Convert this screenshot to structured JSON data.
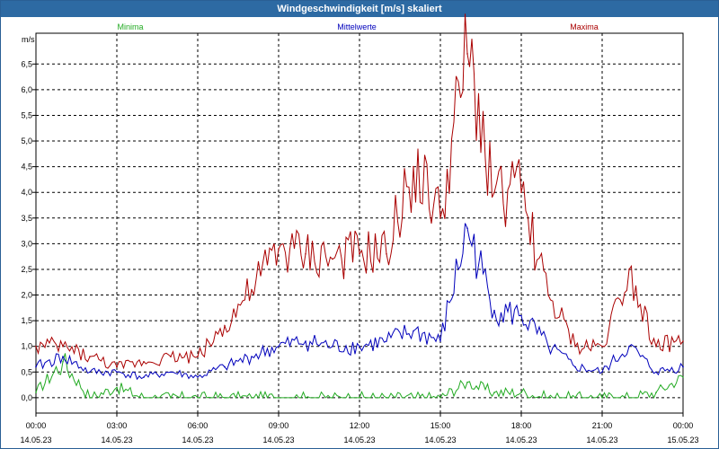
{
  "window": {
    "title": "Windgeschwindigkeit [m/s] skaliert"
  },
  "chart_data": {
    "type": "line",
    "title": "Windgeschwindigkeit [m/s] skaliert",
    "ylabel": "m/s",
    "ylim": [
      -0.3,
      7.1
    ],
    "yticks": [
      0.0,
      0.5,
      1.0,
      1.5,
      2.0,
      2.5,
      3.0,
      3.5,
      4.0,
      4.5,
      5.0,
      5.5,
      6.0,
      6.5
    ],
    "ytick_labels": [
      "0,0",
      "0,5",
      "1,0",
      "1,5",
      "2,0",
      "2,5",
      "3,0",
      "3,5",
      "4,0",
      "4,5",
      "5,0",
      "5,5",
      "6,0",
      "6,5"
    ],
    "xticks": [
      {
        "time": "00:00",
        "date": "14.05.23"
      },
      {
        "time": "03:00",
        "date": "14.05.23"
      },
      {
        "time": "06:00",
        "date": "14.05.23"
      },
      {
        "time": "09:00",
        "date": "14.05.23"
      },
      {
        "time": "12:00",
        "date": "14.05.23"
      },
      {
        "time": "15:00",
        "date": "14.05.23"
      },
      {
        "time": "18:00",
        "date": "14.05.23"
      },
      {
        "time": "21:00",
        "date": "14.05.23"
      },
      {
        "time": "00:00",
        "date": "15.05.23"
      }
    ],
    "x_hours": [
      0,
      1,
      2,
      3,
      4,
      5,
      6,
      7,
      8,
      9,
      10,
      11,
      12,
      13,
      14,
      15,
      16,
      17,
      18,
      19,
      20,
      21,
      22,
      23,
      24
    ],
    "grid": true,
    "legend_position": "top",
    "series": [
      {
        "name": "Minima",
        "color": "#22aa22",
        "values": [
          0.1,
          0.7,
          0.0,
          0.2,
          0.0,
          0.0,
          0.0,
          0.0,
          0.0,
          0.0,
          0.0,
          0.0,
          0.0,
          0.0,
          0.0,
          0.0,
          0.3,
          0.1,
          0.1,
          0.0,
          0.0,
          0.0,
          0.0,
          0.1,
          0.4
        ]
      },
      {
        "name": "Mittelwerte",
        "color": "#0000bb",
        "values": [
          0.6,
          0.8,
          0.5,
          0.5,
          0.4,
          0.5,
          0.4,
          0.6,
          0.8,
          1.0,
          1.1,
          1.0,
          1.0,
          1.1,
          1.3,
          1.1,
          3.3,
          1.7,
          1.6,
          1.0,
          0.6,
          0.5,
          1.0,
          0.5,
          0.6
        ]
      },
      {
        "name": "Maxima",
        "color": "#aa0000",
        "values": [
          1.0,
          1.0,
          0.8,
          0.6,
          0.7,
          0.8,
          0.8,
          1.4,
          2.1,
          2.9,
          2.8,
          2.7,
          2.8,
          2.8,
          4.5,
          3.5,
          6.7,
          4.0,
          4.0,
          2.0,
          1.0,
          1.0,
          2.5,
          1.0,
          1.1
        ]
      }
    ]
  }
}
